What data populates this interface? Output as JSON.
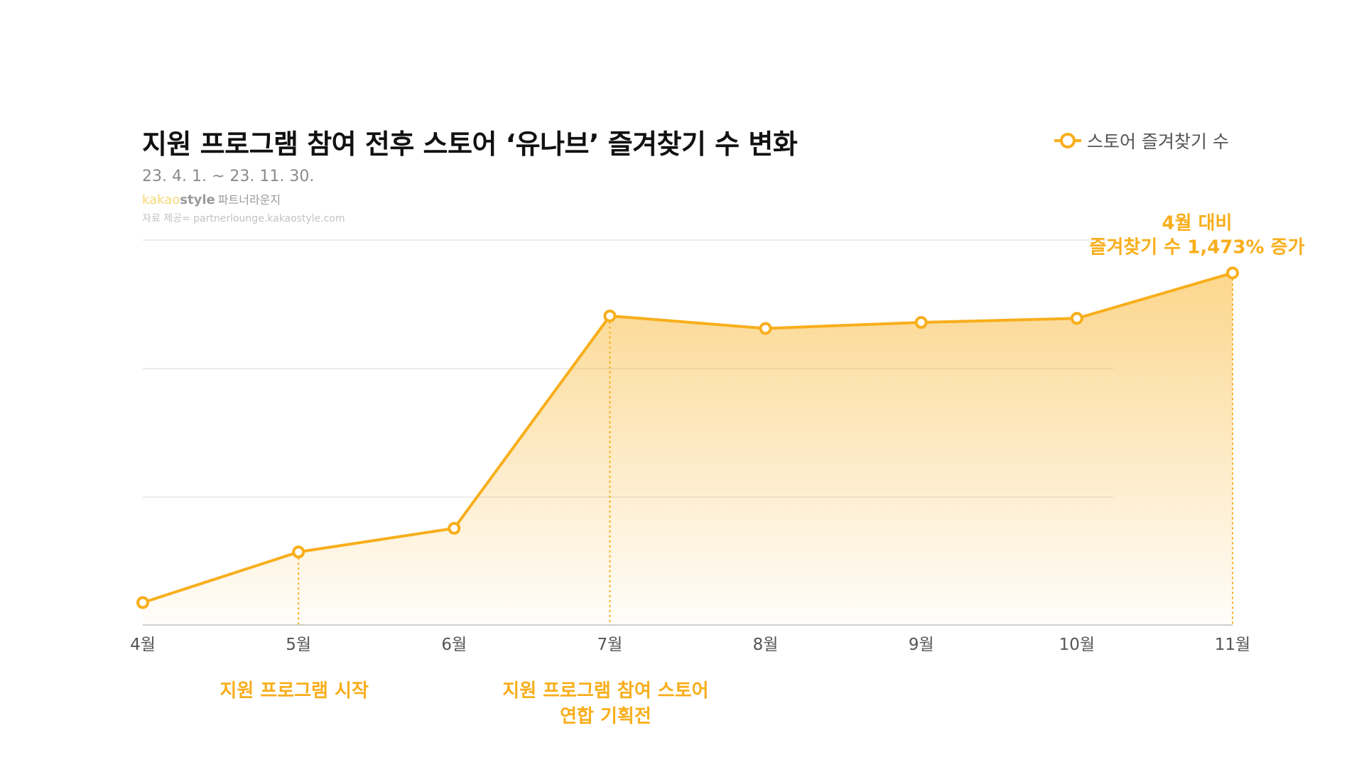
{
  "header": {
    "title": "지원 프로그램 참여 전후 스토어 ‘유나브’ 즐겨찾기 수 변화",
    "period": "23. 4. 1. ~ 23. 11. 30.",
    "brand_kakao": "kakao",
    "brand_style": "style",
    "brand_lounge": "파트너라운지",
    "source": "자료 제공= partnerlounge.kakaostyle.com"
  },
  "colors": {
    "accent": "#f8ae1b",
    "grid": "#e6e6e6",
    "axis": "#cfcfcf"
  },
  "chart_data": {
    "type": "area",
    "title": "지원 프로그램 참여 전후 스토어 ‘유나브’ 즐겨찾기 수 변화",
    "categories": [
      "4월",
      "5월",
      "6월",
      "7월",
      "8월",
      "9월",
      "10월",
      "11월"
    ],
    "series": [
      {
        "name": "스토어 즐겨찾기 수",
        "values": [
          100,
          326,
          432,
          1381,
          1325,
          1352,
          1370,
          1573
        ]
      }
    ],
    "ylim": [
      0,
      1720
    ],
    "y_ticks_labeled": false,
    "grid": true,
    "legend": "top-right",
    "markers": "hollow-circle",
    "annotations": [
      {
        "category": "5월",
        "text": [
          "지원 프로그램 시작"
        ]
      },
      {
        "category": "7월",
        "text": [
          "지원 프로그램 참여 스토어",
          "연합 기획전"
        ]
      },
      {
        "category": "11월",
        "text": [
          "4월 대비",
          "즐겨찾기 수 1,473% 증가"
        ],
        "position": "above"
      }
    ]
  }
}
